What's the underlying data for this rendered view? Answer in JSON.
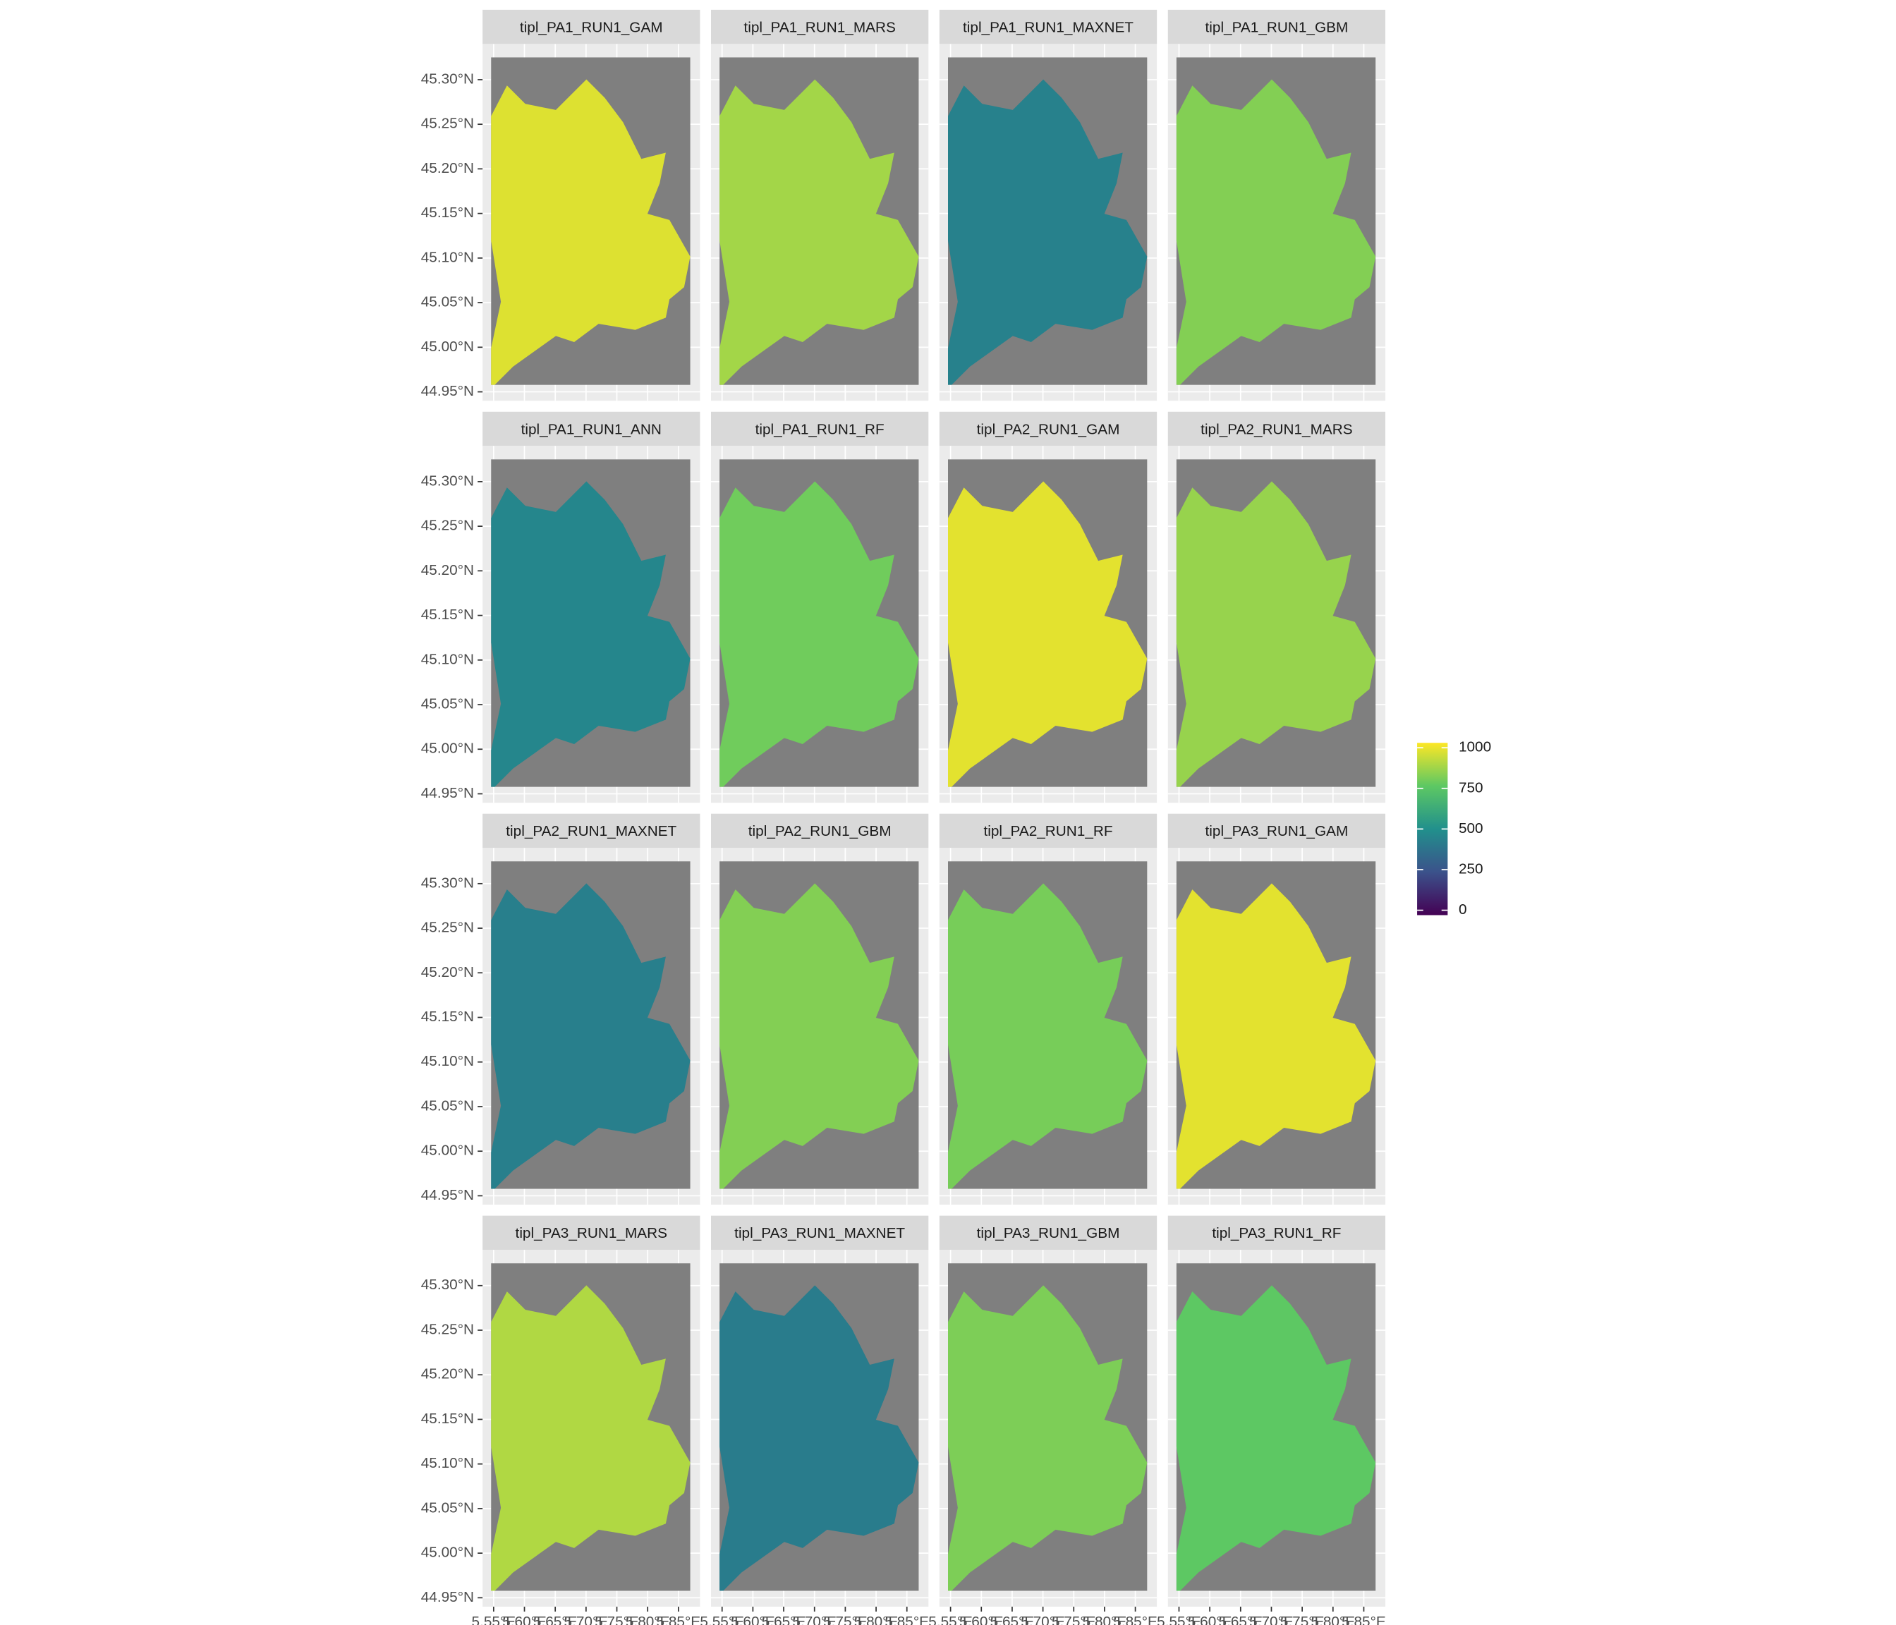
{
  "chart_data": {
    "type": "raster_facets",
    "facets": [
      {
        "title": "tipl_PA1_RUN1_GAM",
        "value": 950
      },
      {
        "title": "tipl_PA1_RUN1_MARS",
        "value": 860
      },
      {
        "title": "tipl_PA1_RUN1_MAXNET",
        "value": 440
      },
      {
        "title": "tipl_PA1_RUN1_GBM",
        "value": 810
      },
      {
        "title": "tipl_PA1_RUN1_ANN",
        "value": 460
      },
      {
        "title": "tipl_PA1_RUN1_RF",
        "value": 780
      },
      {
        "title": "tipl_PA2_RUN1_GAM",
        "value": 960
      },
      {
        "title": "tipl_PA2_RUN1_MARS",
        "value": 840
      },
      {
        "title": "tipl_PA2_RUN1_MAXNET",
        "value": 430
      },
      {
        "title": "tipl_PA2_RUN1_GBM",
        "value": 810
      },
      {
        "title": "tipl_PA2_RUN1_RF",
        "value": 790
      },
      {
        "title": "tipl_PA3_RUN1_GAM",
        "value": 960
      },
      {
        "title": "tipl_PA3_RUN1_MARS",
        "value": 880
      },
      {
        "title": "tipl_PA3_RUN1_MAXNET",
        "value": 420
      },
      {
        "title": "tipl_PA3_RUN1_GBM",
        "value": 800
      },
      {
        "title": "tipl_PA3_RUN1_RF",
        "value": 750
      }
    ],
    "xlim": [
      5.532,
      5.885
    ],
    "ylim": [
      44.94,
      45.34
    ],
    "xticks": [
      {
        "value": 5.55,
        "label": "5.55°E"
      },
      {
        "value": 5.6,
        "label": "5.60°E"
      },
      {
        "value": 5.65,
        "label": "5.65°E"
      },
      {
        "value": 5.7,
        "label": "5.70°E"
      },
      {
        "value": 5.75,
        "label": "5.75°E"
      },
      {
        "value": 5.8,
        "label": "5.80°E"
      },
      {
        "value": 5.85,
        "label": "5.85°E"
      }
    ],
    "yticks": [
      {
        "value": 44.95,
        "label": "44.95°N"
      },
      {
        "value": 45.0,
        "label": "45.00°N"
      },
      {
        "value": 45.05,
        "label": "45.05°N"
      },
      {
        "value": 45.1,
        "label": "45.10°N"
      },
      {
        "value": 45.15,
        "label": "45.15°N"
      },
      {
        "value": 45.2,
        "label": "45.20°N"
      },
      {
        "value": 45.25,
        "label": "45.25°N"
      },
      {
        "value": 45.3,
        "label": "45.30°N"
      }
    ],
    "grid": true,
    "colorbar": {
      "lim": [
        0,
        1000
      ],
      "ticks": [
        0,
        250,
        500,
        750,
        1000
      ],
      "colormap": [
        "#440154",
        "#3b528b",
        "#21908c",
        "#5dc863",
        "#fde725"
      ]
    }
  }
}
